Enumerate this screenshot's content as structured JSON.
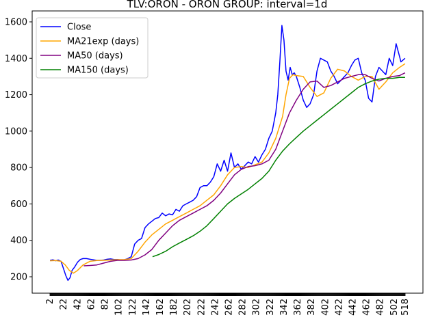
{
  "chart_data": {
    "type": "line",
    "title": "TLV:ORON - ORON GROUP: interval=1d",
    "xlabel": "",
    "ylabel": "",
    "xlim": [
      -24,
      544
    ],
    "ylim": [
      110,
      1660
    ],
    "yticks": [
      200,
      400,
      600,
      800,
      1000,
      1200,
      1400,
      1600
    ],
    "xticks": [
      2,
      22,
      42,
      62,
      82,
      102,
      122,
      142,
      162,
      182,
      202,
      222,
      242,
      262,
      282,
      302,
      322,
      342,
      362,
      382,
      402,
      422,
      442,
      462,
      482,
      502,
      518
    ],
    "legend": {
      "position": "top-left"
    },
    "grid": false,
    "series": [
      {
        "name": "Close",
        "color": "#0000ff",
        "x": [
          2,
          6,
          10,
          14,
          18,
          22,
          25,
          28,
          31,
          34,
          38,
          42,
          46,
          50,
          55,
          60,
          65,
          70,
          75,
          80,
          85,
          90,
          95,
          100,
          105,
          110,
          115,
          120,
          125,
          130,
          135,
          140,
          145,
          150,
          155,
          160,
          165,
          170,
          175,
          180,
          185,
          190,
          195,
          200,
          205,
          210,
          215,
          220,
          225,
          230,
          235,
          240,
          245,
          250,
          255,
          260,
          265,
          270,
          275,
          280,
          285,
          290,
          295,
          300,
          305,
          310,
          315,
          320,
          325,
          330,
          333,
          336,
          339,
          342,
          345,
          348,
          351,
          354,
          357,
          360,
          365,
          370,
          375,
          380,
          385,
          390,
          395,
          400,
          405,
          410,
          415,
          420,
          425,
          430,
          435,
          440,
          445,
          450,
          455,
          460,
          465,
          470,
          475,
          480,
          485,
          490,
          495,
          500,
          505,
          510,
          512,
          515,
          518
        ],
        "y": [
          290,
          293,
          288,
          292,
          285,
          240,
          205,
          180,
          195,
          235,
          255,
          280,
          295,
          300,
          300,
          296,
          293,
          290,
          290,
          292,
          296,
          298,
          295,
          295,
          292,
          293,
          300,
          310,
          380,
          400,
          410,
          470,
          490,
          505,
          520,
          525,
          550,
          535,
          545,
          540,
          570,
          560,
          590,
          600,
          610,
          620,
          640,
          690,
          700,
          700,
          720,
          750,
          820,
          780,
          840,
          780,
          880,
          800,
          820,
          790,
          810,
          830,
          820,
          860,
          830,
          870,
          900,
          960,
          1000,
          1100,
          1200,
          1380,
          1580,
          1500,
          1330,
          1280,
          1350,
          1310,
          1320,
          1300,
          1240,
          1170,
          1130,
          1150,
          1200,
          1330,
          1400,
          1390,
          1380,
          1330,
          1300,
          1260,
          1280,
          1300,
          1320,
          1360,
          1390,
          1400,
          1320,
          1280,
          1180,
          1160,
          1300,
          1350,
          1330,
          1310,
          1400,
          1360,
          1480,
          1410,
          1380,
          1390,
          1400
        ]
      },
      {
        "name": "MA21exp (days)",
        "color": "#ffa500",
        "x": [
          2,
          10,
          18,
          24,
          30,
          36,
          42,
          50,
          60,
          70,
          80,
          90,
          100,
          110,
          120,
          130,
          140,
          150,
          160,
          170,
          180,
          190,
          200,
          210,
          220,
          230,
          240,
          250,
          260,
          270,
          280,
          290,
          300,
          310,
          320,
          330,
          340,
          345,
          350,
          355,
          360,
          370,
          380,
          390,
          400,
          410,
          420,
          430,
          440,
          450,
          460,
          470,
          480,
          490,
          500,
          510,
          518
        ],
        "y": [
          288,
          289,
          285,
          265,
          235,
          220,
          235,
          265,
          285,
          289,
          290,
          292,
          294,
          294,
          300,
          340,
          390,
          430,
          460,
          490,
          510,
          530,
          550,
          570,
          590,
          620,
          650,
          700,
          760,
          800,
          805,
          800,
          815,
          830,
          880,
          960,
          1080,
          1200,
          1290,
          1310,
          1305,
          1300,
          1240,
          1190,
          1210,
          1290,
          1340,
          1330,
          1300,
          1280,
          1300,
          1300,
          1230,
          1270,
          1320,
          1350,
          1370
        ]
      },
      {
        "name": "MA50 (days)",
        "color": "#800080",
        "x": [
          51,
          60,
          70,
          80,
          90,
          100,
          110,
          120,
          130,
          140,
          150,
          160,
          170,
          180,
          190,
          200,
          210,
          220,
          230,
          240,
          250,
          260,
          270,
          280,
          290,
          300,
          310,
          320,
          330,
          340,
          350,
          360,
          370,
          380,
          390,
          400,
          410,
          420,
          430,
          440,
          450,
          460,
          470,
          480,
          490,
          500,
          510,
          518
        ],
        "y": [
          260,
          262,
          265,
          275,
          285,
          290,
          290,
          292,
          300,
          320,
          350,
          400,
          440,
          480,
          510,
          530,
          550,
          570,
          590,
          620,
          660,
          710,
          760,
          790,
          805,
          810,
          820,
          840,
          900,
          1000,
          1100,
          1170,
          1230,
          1270,
          1275,
          1240,
          1250,
          1270,
          1290,
          1300,
          1310,
          1310,
          1290,
          1275,
          1290,
          1300,
          1305,
          1320
        ]
      },
      {
        "name": "MA150 (days)",
        "color": "#008000",
        "x": [
          151,
          160,
          170,
          180,
          190,
          200,
          210,
          220,
          230,
          240,
          250,
          260,
          270,
          280,
          290,
          300,
          310,
          320,
          330,
          340,
          350,
          360,
          370,
          380,
          390,
          400,
          410,
          420,
          430,
          440,
          450,
          460,
          470,
          480,
          490,
          500,
          510,
          518
        ],
        "y": [
          310,
          322,
          340,
          365,
          385,
          405,
          425,
          450,
          480,
          520,
          560,
          600,
          630,
          655,
          680,
          710,
          740,
          780,
          840,
          890,
          930,
          965,
          1000,
          1030,
          1060,
          1090,
          1120,
          1150,
          1180,
          1210,
          1240,
          1260,
          1275,
          1285,
          1290,
          1290,
          1295,
          1295
        ]
      }
    ]
  }
}
